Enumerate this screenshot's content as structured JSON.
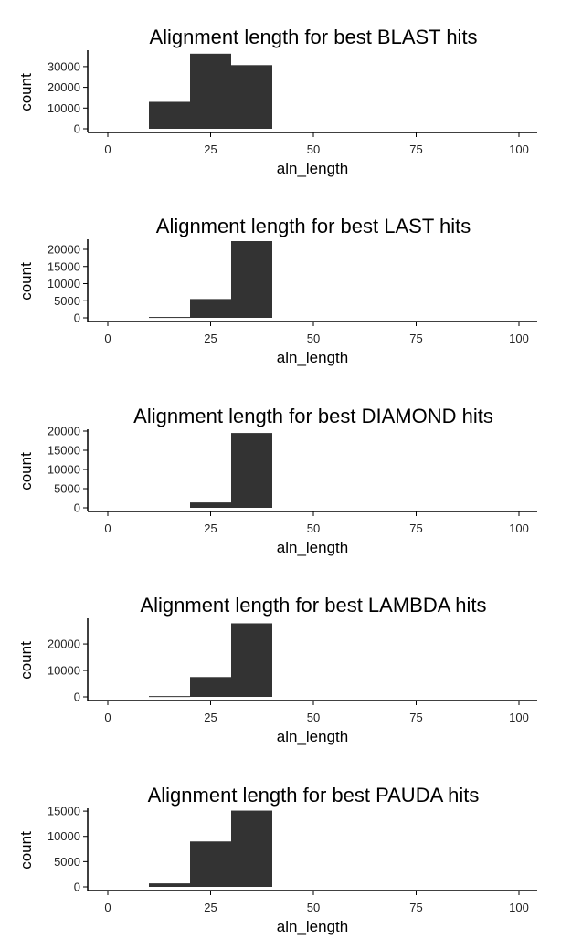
{
  "chart_data": [
    {
      "type": "bar",
      "title": "Alignment length for best BLAST hits",
      "xlabel": "aln_length",
      "ylabel": "count",
      "xlim": [
        -5,
        105
      ],
      "ylim": [
        0,
        37000
      ],
      "x_ticks": [
        "0",
        "25",
        "50",
        "75",
        "100"
      ],
      "y_ticks": [
        "0",
        "10000",
        "20000",
        "30000"
      ],
      "bins": [
        [
          10,
          20
        ],
        [
          20,
          30
        ],
        [
          30,
          40
        ]
      ],
      "values": [
        13000,
        36200,
        30700
      ],
      "bar_color": "#333333",
      "grid": false
    },
    {
      "type": "bar",
      "title": "Alignment length for best LAST hits",
      "xlabel": "aln_length",
      "ylabel": "count",
      "xlim": [
        -5,
        105
      ],
      "ylim": [
        0,
        22400
      ],
      "x_ticks": [
        "0",
        "25",
        "50",
        "75",
        "100"
      ],
      "y_ticks": [
        "0",
        "5000",
        "10000",
        "15000",
        "20000"
      ],
      "bins": [
        [
          10,
          20
        ],
        [
          20,
          30
        ],
        [
          30,
          40
        ]
      ],
      "values": [
        250,
        5500,
        22400
      ],
      "bar_color": "#333333",
      "grid": false
    },
    {
      "type": "bar",
      "title": "Alignment length for best DIAMOND hits",
      "xlabel": "aln_length",
      "ylabel": "count",
      "xlim": [
        -5,
        105
      ],
      "ylim": [
        0,
        20000
      ],
      "x_ticks": [
        "0",
        "25",
        "50",
        "75",
        "100"
      ],
      "y_ticks": [
        "0",
        "5000",
        "10000",
        "15000",
        "20000"
      ],
      "bins": [
        [
          10,
          20
        ],
        [
          20,
          30
        ],
        [
          30,
          40
        ]
      ],
      "values": [
        0,
        1400,
        19500
      ],
      "bar_color": "#333333",
      "grid": false
    },
    {
      "type": "bar",
      "title": "Alignment length for best LAMBDA hits",
      "xlabel": "aln_length",
      "ylabel": "count",
      "xlim": [
        -5,
        105
      ],
      "ylim": [
        0,
        29000
      ],
      "x_ticks": [
        "0",
        "25",
        "50",
        "75",
        "100"
      ],
      "y_ticks": [
        "0",
        "10000",
        "20000"
      ],
      "bins": [
        [
          10,
          20
        ],
        [
          20,
          30
        ],
        [
          30,
          40
        ]
      ],
      "values": [
        300,
        7500,
        27800
      ],
      "bar_color": "#333333",
      "grid": false
    },
    {
      "type": "bar",
      "title": "Alignment length for best PAUDA hits",
      "xlabel": "aln_length",
      "ylabel": "count",
      "xlim": [
        -5,
        105
      ],
      "ylim": [
        0,
        15200
      ],
      "x_ticks": [
        "0",
        "25",
        "50",
        "75",
        "100"
      ],
      "y_ticks": [
        "0",
        "5000",
        "10000",
        "15000"
      ],
      "bins": [
        [
          10,
          20
        ],
        [
          20,
          30
        ],
        [
          30,
          40
        ]
      ],
      "values": [
        700,
        9000,
        15100
      ],
      "bar_color": "#333333",
      "grid": false
    }
  ]
}
